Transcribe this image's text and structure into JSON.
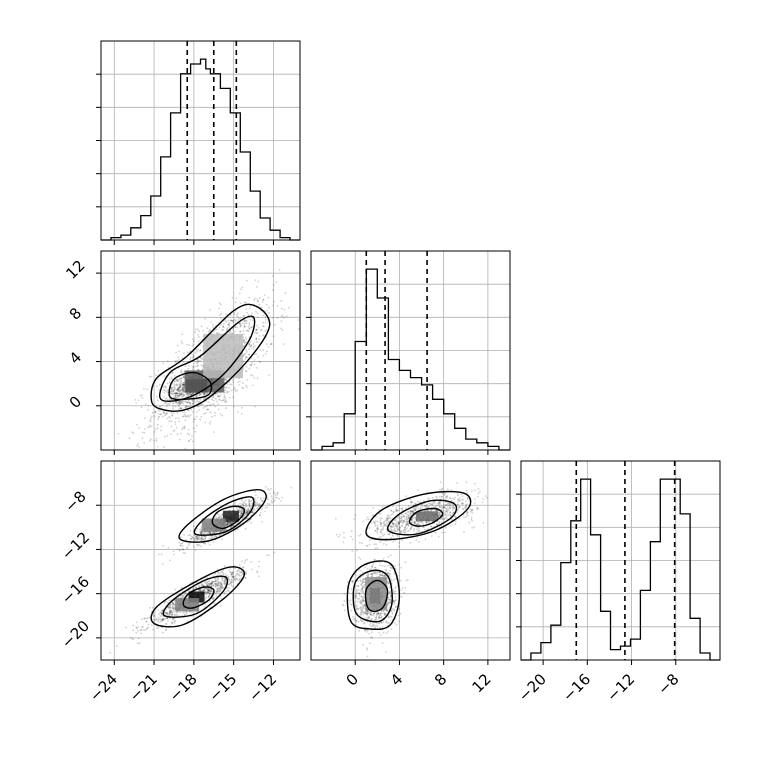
{
  "chart_data": {
    "type": "corner",
    "grid": true,
    "parameters": [
      {
        "range": [
          -25,
          -10
        ],
        "ticks": [
          -24,
          -21,
          -18,
          -15,
          -12
        ],
        "tick_labels": [
          "−24",
          "−21",
          "−18",
          "−15",
          "−12"
        ],
        "quantiles": [
          -18.5,
          -16.5,
          -14.8
        ],
        "histogram": {
          "bin_edges": [
            -25,
            -24.25,
            -23.5,
            -22.75,
            -22,
            -21.25,
            -20.5,
            -19.75,
            -19,
            -18.25,
            -17.5,
            -17.1,
            -16.75,
            -16,
            -15.25,
            -14.5,
            -13.75,
            -13,
            -12.25,
            -11.5,
            -10.75,
            -10
          ],
          "counts": [
            0,
            1,
            2,
            5,
            10,
            18,
            34,
            52,
            68,
            72,
            74,
            70,
            68,
            62,
            52,
            36,
            20,
            9,
            4,
            1,
            0
          ]
        }
      },
      {
        "range": [
          -4,
          14
        ],
        "ticks": [
          0,
          4,
          8,
          12
        ],
        "tick_labels": [
          "0",
          "4",
          "8",
          "12"
        ],
        "quantiles": [
          1.0,
          2.7,
          6.5
        ],
        "histogram": {
          "bin_edges": [
            -4,
            -3,
            -2,
            -1,
            0,
            1,
            2,
            3,
            4,
            5,
            6,
            7,
            8,
            9,
            10,
            11,
            12,
            13,
            14
          ],
          "counts": [
            0,
            1,
            2,
            10,
            30,
            50,
            42,
            25,
            22,
            20,
            18,
            14,
            10,
            6,
            3,
            2,
            1,
            0
          ]
        }
      },
      {
        "range": [
          -22,
          -4
        ],
        "ticks": [
          -20,
          -16,
          -12,
          -8
        ],
        "tick_labels": [
          "−20",
          "−16",
          "−12",
          "−8"
        ],
        "quantiles": [
          -17.0,
          -12.6,
          -8.1
        ],
        "histogram": {
          "bin_edges": [
            -22,
            -21.1,
            -20.2,
            -19.3,
            -18.4,
            -17.5,
            -16.6,
            -15.7,
            -14.8,
            -13.9,
            -13,
            -12.1,
            -11.2,
            -10.3,
            -9.4,
            -8.5,
            -7.6,
            -6.7,
            -5.8,
            -4.9,
            -4
          ],
          "counts": [
            0,
            2,
            5,
            10,
            28,
            40,
            52,
            36,
            14,
            3,
            4,
            6,
            20,
            34,
            52,
            52,
            42,
            12,
            2,
            0
          ]
        }
      }
    ],
    "pair_axis_ticks": {
      "y_row1": [
        0,
        4,
        8,
        12
      ],
      "y_row2": [
        -20,
        -16,
        -12,
        -8
      ]
    },
    "panels": [
      {
        "x_param": 0,
        "y_param": 1,
        "clusters": [
          {
            "mean": [
              -16.5,
              3.5
            ],
            "sd": [
              2.3,
              3.0
            ],
            "rho": 0.7,
            "n": 1400
          },
          {
            "mean": [
              -17.8,
              1.8
            ],
            "sd": [
              1.0,
              0.7
            ],
            "rho": 0.4,
            "n": 700
          }
        ],
        "hist2d": {
          "cells": [
            {
              "x": -17.8,
              "y": 1.8,
              "w": 1.6,
              "h": 1.2,
              "level": 0.95
            },
            {
              "x": -17.2,
              "y": 2.2,
              "w": 3.0,
              "h": 2.0,
              "level": 0.6
            },
            {
              "x": -15.8,
              "y": 4.5,
              "w": 3.0,
              "h": 4.0,
              "level": 0.2
            }
          ]
        },
        "contours": [
          {
            "points": [
              [
                -19.8,
                0.8
              ],
              [
                -19.5,
                2.4
              ],
              [
                -18,
                3
              ],
              [
                -16.8,
                2.2
              ],
              [
                -16.9,
                1
              ],
              [
                -18.5,
                0.6
              ]
            ]
          },
          {
            "points": [
              [
                -20.5,
                0.6
              ],
              [
                -19.8,
                3
              ],
              [
                -17.5,
                4.5
              ],
              [
                -14.7,
                7.5
              ],
              [
                -13.5,
                8
              ],
              [
                -13.8,
                6
              ],
              [
                -15.8,
                2.8
              ],
              [
                -18.3,
                0.8
              ]
            ]
          },
          {
            "points": [
              [
                -21.2,
                0.5
              ],
              [
                -20.8,
                2.5
              ],
              [
                -18.5,
                4.5
              ],
              [
                -15,
                8.6
              ],
              [
                -13.3,
                9
              ],
              [
                -12.3,
                7.2
              ],
              [
                -14,
                4
              ],
              [
                -16.8,
                0.8
              ],
              [
                -18.8,
                -0.4
              ],
              [
                -20.5,
                -0.3
              ]
            ]
          }
        ]
      },
      {
        "x_param": 0,
        "y_param": 2,
        "clusters": [
          {
            "mean": [
              -15.5,
              -9.5
            ],
            "sd": [
              1.6,
              1.1
            ],
            "rho": 0.9,
            "n": 900
          },
          {
            "mean": [
              -17.8,
              -16.3
            ],
            "sd": [
              1.8,
              1.3
            ],
            "rho": 0.9,
            "n": 1000
          }
        ],
        "hist2d": {
          "cells": [
            {
              "x": -15.2,
              "y": -9.0,
              "w": 1.2,
              "h": 1.0,
              "level": 0.85
            },
            {
              "x": -17.8,
              "y": -16.3,
              "w": 1.2,
              "h": 1.0,
              "level": 0.95
            },
            {
              "x": -16.5,
              "y": -9.8,
              "w": 1.8,
              "h": 1.2,
              "level": 0.45
            },
            {
              "x": -18.5,
              "y": -17.0,
              "w": 1.8,
              "h": 1.2,
              "level": 0.45
            }
          ]
        },
        "contours": [
          {
            "points": [
              [
                -16.6,
                -9.6
              ],
              [
                -16.2,
                -8.6
              ],
              [
                -15,
                -8.1
              ],
              [
                -14.2,
                -8.4
              ],
              [
                -14.6,
                -9.3
              ],
              [
                -15.8,
                -10.1
              ]
            ]
          },
          {
            "points": [
              [
                -17.9,
                -10.6
              ],
              [
                -17.2,
                -9.2
              ],
              [
                -15.2,
                -7.7
              ],
              [
                -13.6,
                -7.3
              ],
              [
                -13.8,
                -8.7
              ],
              [
                -15.6,
                -10.4
              ]
            ]
          },
          {
            "points": [
              [
                -19.0,
                -11.1
              ],
              [
                -18.5,
                -9.8
              ],
              [
                -15.8,
                -7.5
              ],
              [
                -13.2,
                -6.6
              ],
              [
                -12.6,
                -7.5
              ],
              [
                -14.2,
                -9.6
              ],
              [
                -16.8,
                -11.2
              ]
            ]
          },
          {
            "points": [
              [
                -18.8,
                -17.0
              ],
              [
                -18.4,
                -16.0
              ],
              [
                -17.2,
                -15.4
              ],
              [
                -16.5,
                -15.7
              ],
              [
                -16.9,
                -16.6
              ],
              [
                -18.1,
                -17.3
              ]
            ]
          },
          {
            "points": [
              [
                -20.2,
                -18.0
              ],
              [
                -19.6,
                -16.6
              ],
              [
                -17.2,
                -14.8
              ],
              [
                -15.6,
                -14.5
              ],
              [
                -15.8,
                -15.8
              ],
              [
                -17.8,
                -17.8
              ]
            ]
          },
          {
            "points": [
              [
                -21.0,
                -18.7
              ],
              [
                -20.8,
                -17.2
              ],
              [
                -18,
                -15.0
              ],
              [
                -15.3,
                -13.6
              ],
              [
                -14.2,
                -14.3
              ],
              [
                -15.8,
                -16.5
              ],
              [
                -18.8,
                -18.8
              ]
            ]
          }
        ]
      },
      {
        "x_param": 1,
        "y_param": 2,
        "clusters": [
          {
            "mean": [
              6.0,
              -9.0
            ],
            "sd": [
              2.4,
              1.0
            ],
            "rho": 0.6,
            "n": 900
          },
          {
            "mean": [
              1.8,
              -16.3
            ],
            "sd": [
              1.0,
              1.5
            ],
            "rho": 0.1,
            "n": 1000
          }
        ],
        "hist2d": {
          "cells": [
            {
              "x": 1.8,
              "y": -16.2,
              "w": 0.9,
              "h": 1.4,
              "level": 0.95
            },
            {
              "x": 6.5,
              "y": -9.0,
              "w": 2.0,
              "h": 0.9,
              "level": 0.55
            },
            {
              "x": 1.9,
              "y": -16.0,
              "w": 2.0,
              "h": 3.0,
              "level": 0.4
            }
          ]
        },
        "contours": [
          {
            "points": [
              [
                4.9,
                -9.5
              ],
              [
                5.6,
                -8.6
              ],
              [
                7.2,
                -8.3
              ],
              [
                7.9,
                -8.8
              ],
              [
                7.0,
                -9.6
              ],
              [
                5.7,
                -9.9
              ]
            ]
          },
          {
            "points": [
              [
                3.0,
                -10.3
              ],
              [
                4.0,
                -8.8
              ],
              [
                6.8,
                -7.6
              ],
              [
                9.0,
                -7.9
              ],
              [
                8.6,
                -9.2
              ],
              [
                5.6,
                -10.6
              ]
            ]
          },
          {
            "points": [
              [
                1.0,
                -10.6
              ],
              [
                2.3,
                -8.5
              ],
              [
                6.2,
                -7.0
              ],
              [
                9.8,
                -6.9
              ],
              [
                10.2,
                -8.3
              ],
              [
                7.2,
                -10.3
              ],
              [
                3.2,
                -11.1
              ]
            ]
          },
          {
            "points": [
              [
                1.1,
                -17.2
              ],
              [
                1.0,
                -15.6
              ],
              [
                2.0,
                -14.8
              ],
              [
                2.9,
                -15.6
              ],
              [
                2.6,
                -17.1
              ],
              [
                1.8,
                -17.6
              ]
            ]
          },
          {
            "points": [
              [
                0.1,
                -17.8
              ],
              [
                0.0,
                -15.0
              ],
              [
                1.6,
                -13.9
              ],
              [
                3.0,
                -14.5
              ],
              [
                3.3,
                -17.0
              ],
              [
                2.2,
                -18.5
              ]
            ]
          },
          {
            "points": [
              [
                -0.4,
                -18.5
              ],
              [
                -0.6,
                -15.2
              ],
              [
                0.8,
                -13.4
              ],
              [
                3.2,
                -13.3
              ],
              [
                4.0,
                -16.2
              ],
              [
                3.2,
                -18.8
              ],
              [
                1.4,
                -19.2
              ]
            ]
          }
        ]
      }
    ]
  }
}
